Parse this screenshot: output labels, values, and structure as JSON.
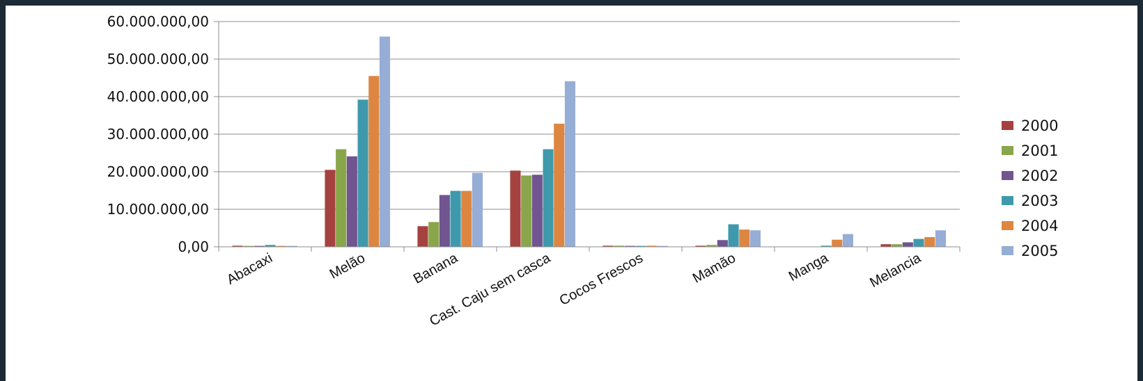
{
  "chart_data": {
    "type": "bar",
    "title": "",
    "xlabel": "",
    "ylabel": "",
    "ylim": [
      0,
      60000000
    ],
    "y_ticks": [
      "0,00",
      "10.000.000,00",
      "20.000.000,00",
      "30.000.000,00",
      "40.000.000,00",
      "50.000.000,00",
      "60.000.000,00"
    ],
    "grid": "horizontal",
    "legend": "right",
    "categories": [
      "Abacaxi",
      "Melão",
      "Banana",
      "Cast. Caju sem casca",
      "Cocos Frescos",
      "Mamão",
      "Manga",
      "Melancia"
    ],
    "series": [
      {
        "name": "2000",
        "color": "#a5423f",
        "values": [
          300000,
          20500000,
          5500000,
          20300000,
          300000,
          300000,
          0,
          700000
        ]
      },
      {
        "name": "2001",
        "color": "#8aa64b",
        "values": [
          250000,
          26000000,
          6600000,
          19000000,
          300000,
          500000,
          0,
          700000
        ]
      },
      {
        "name": "2002",
        "color": "#705590",
        "values": [
          250000,
          24100000,
          13800000,
          19200000,
          250000,
          1800000,
          0,
          1200000
        ]
      },
      {
        "name": "2003",
        "color": "#3f99ac",
        "values": [
          500000,
          39200000,
          14900000,
          26000000,
          250000,
          6000000,
          300000,
          2100000
        ]
      },
      {
        "name": "2004",
        "color": "#dd8641",
        "values": [
          250000,
          45500000,
          14900000,
          32800000,
          300000,
          4600000,
          1900000,
          2600000
        ]
      },
      {
        "name": "2005",
        "color": "#96add6",
        "values": [
          250000,
          56000000,
          19700000,
          44100000,
          250000,
          4400000,
          3400000,
          4400000
        ]
      }
    ]
  }
}
